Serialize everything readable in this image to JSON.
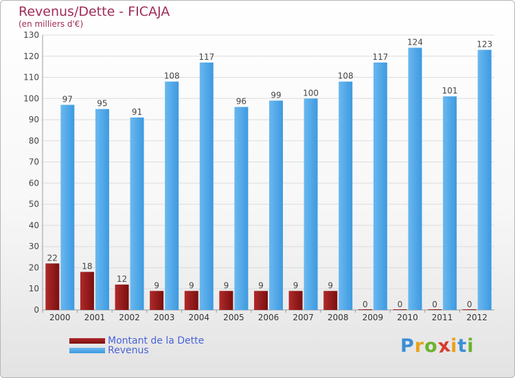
{
  "chart_data": {
    "type": "bar",
    "title": "Revenus/Dette - FICAJA",
    "subtitle": "(en milliers d'€)",
    "categories": [
      "2000",
      "2001",
      "2002",
      "2003",
      "2004",
      "2005",
      "2006",
      "2007",
      "2008",
      "2009",
      "2010",
      "2011",
      "2012"
    ],
    "series": [
      {
        "name": "Montant de la Dette",
        "color": "#7a0f0f",
        "values": [
          22,
          18,
          12,
          9,
          9,
          9,
          9,
          9,
          9,
          0,
          0,
          0,
          0
        ]
      },
      {
        "name": "Revenus",
        "color": "#3d9ae0",
        "values": [
          97,
          95,
          91,
          108,
          117,
          96,
          99,
          100,
          108,
          117,
          124,
          101,
          123
        ]
      }
    ],
    "ylim": [
      0,
      130
    ],
    "yticks": [
      0,
      10,
      20,
      30,
      40,
      50,
      60,
      70,
      80,
      90,
      100,
      110,
      120,
      130
    ],
    "grid": true,
    "legend_position": "bottom-left"
  },
  "logo": {
    "letters": [
      "P",
      "r",
      "o",
      "x",
      "i",
      "t",
      "i"
    ],
    "colors": [
      "#3a8fd6",
      "#e8a21a",
      "#6bb22c",
      "#d93a2b",
      "#e8a21a",
      "#3a8fd6",
      "#6bb22c"
    ]
  }
}
